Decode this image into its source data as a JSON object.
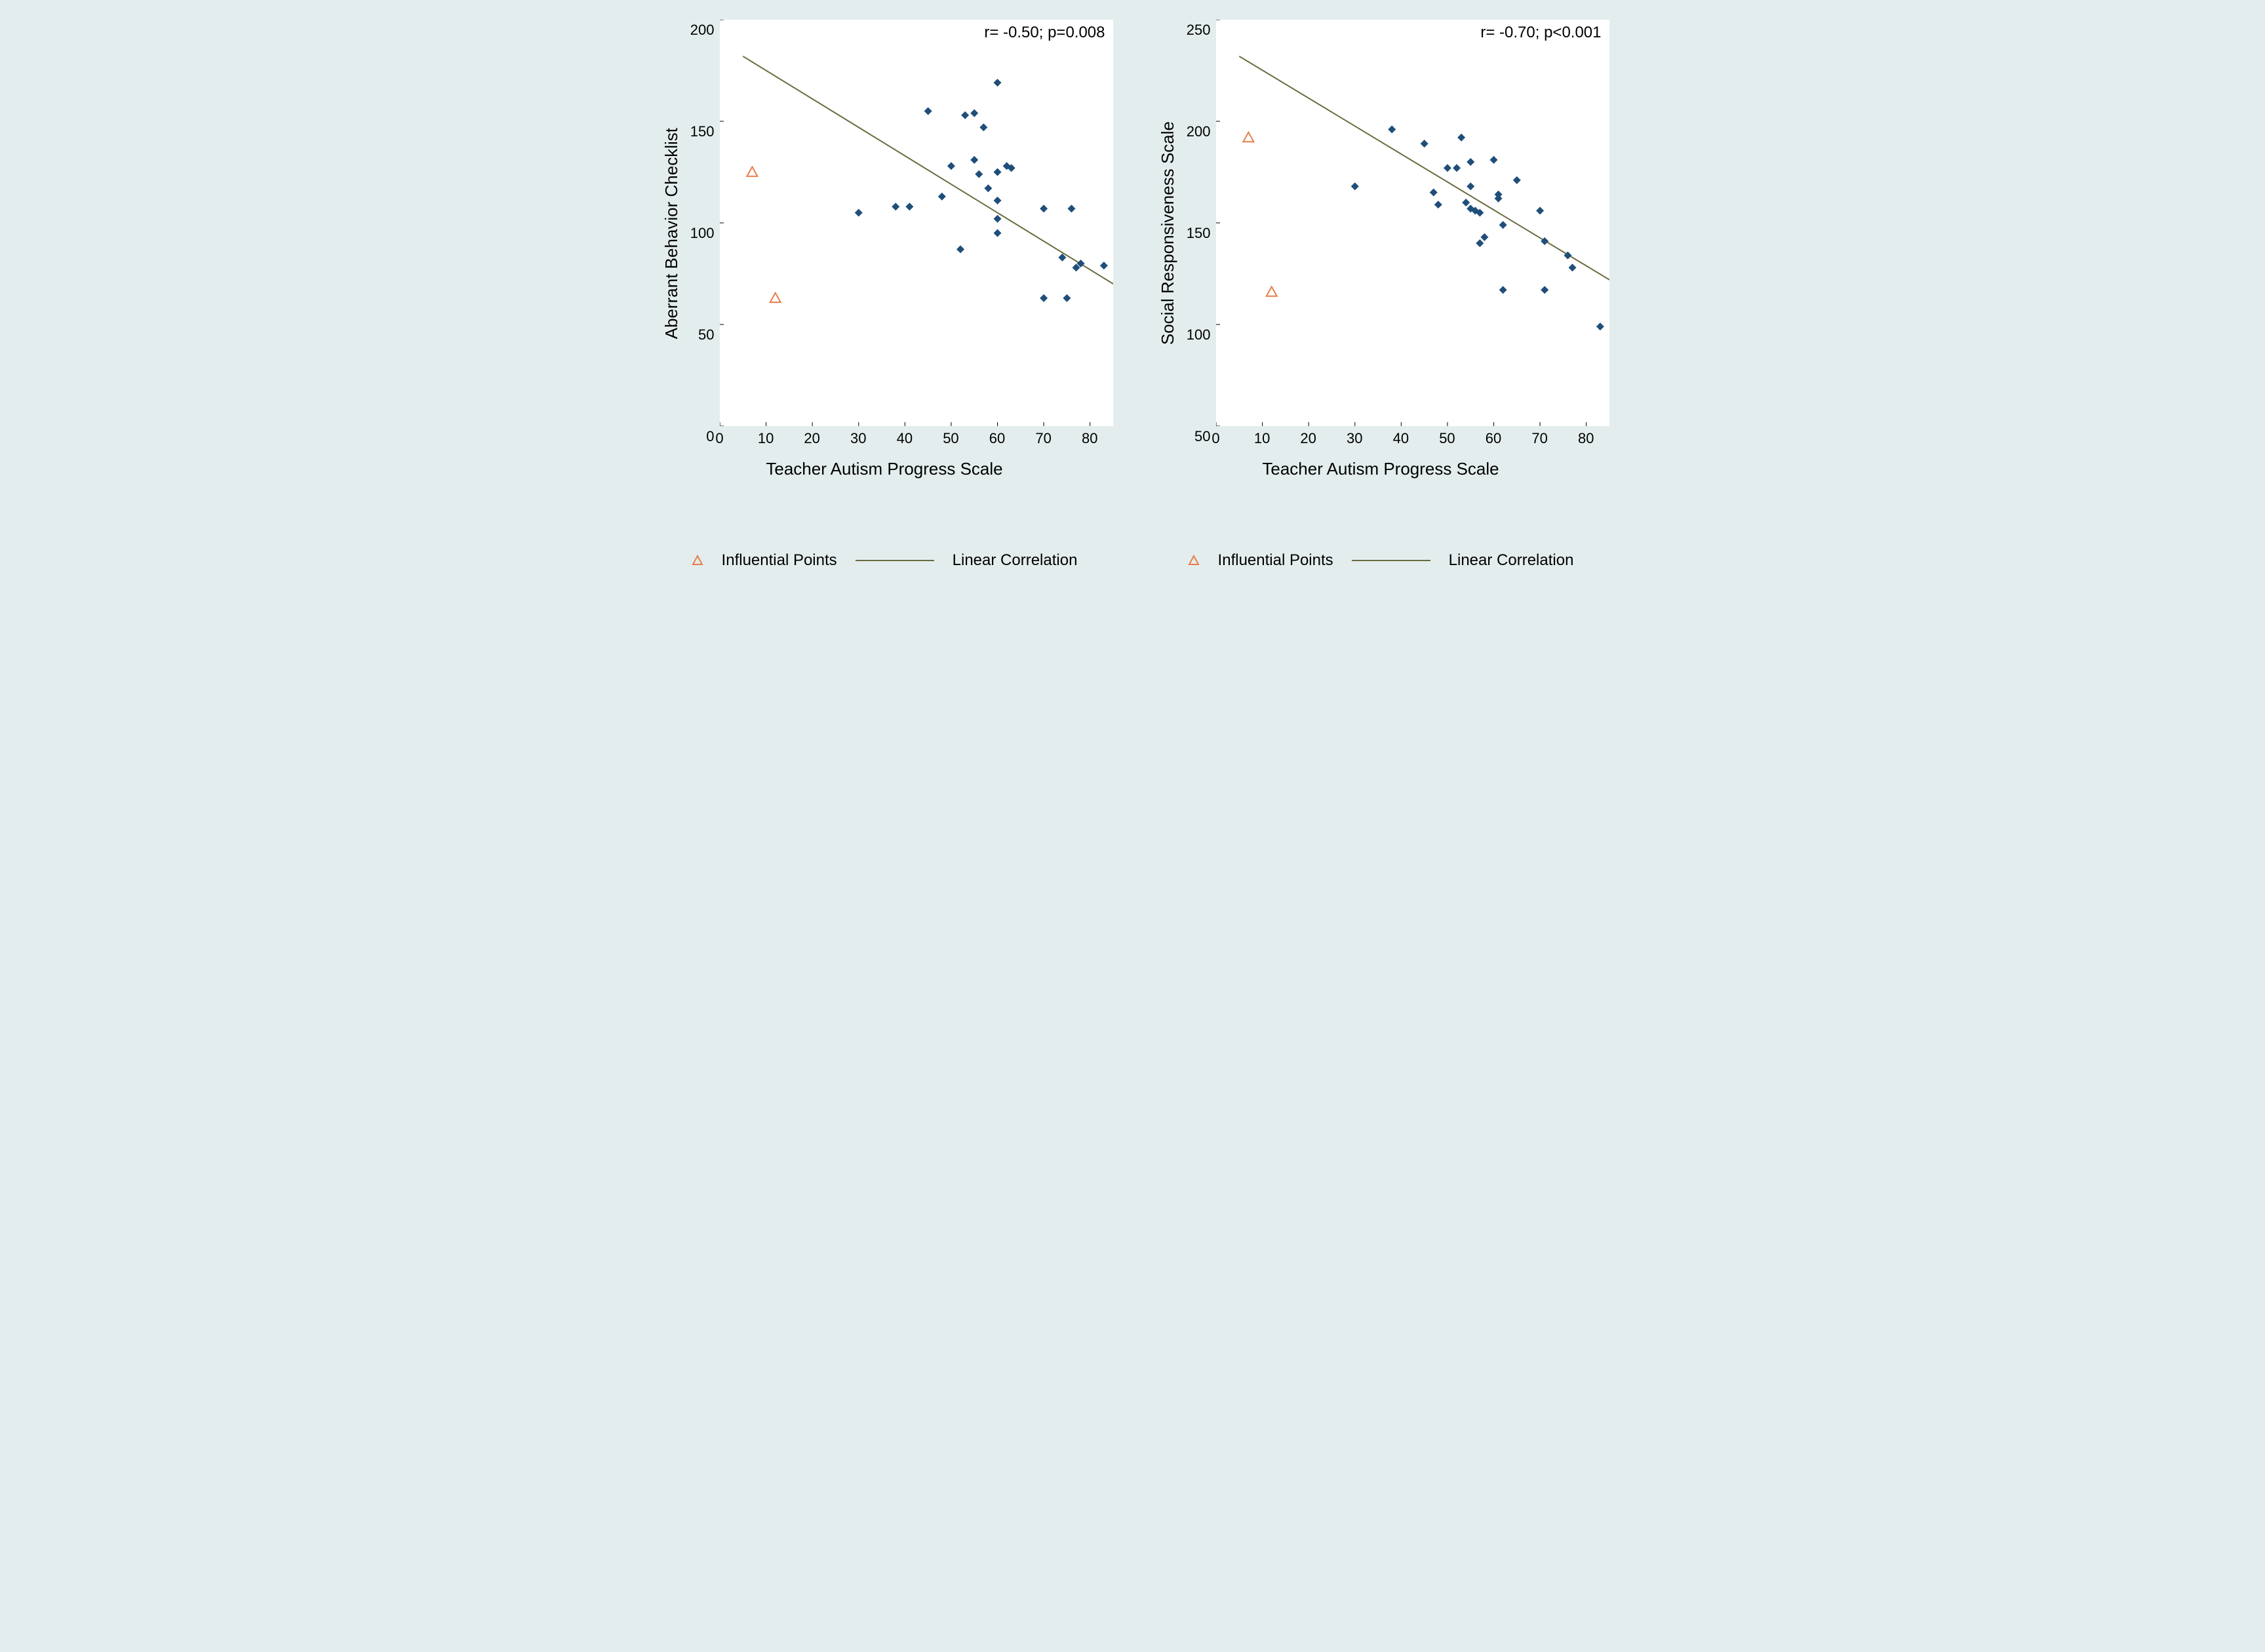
{
  "figure": {
    "background_color": "#e4edee",
    "plot_background": "#ffffff",
    "font_family": "Arial",
    "panels": [
      {
        "id": "left",
        "ylabel": "Aberrant Behavior Checklist",
        "xlabel": "Teacher Autism Progress Scale",
        "annotation": "r= -0.50; p=0.008",
        "type": "scatter",
        "xlim": [
          0,
          85
        ],
        "ylim": [
          0,
          200
        ],
        "xticks": [
          0,
          10,
          20,
          30,
          40,
          50,
          60,
          70,
          80
        ],
        "yticks": [
          0,
          50,
          100,
          150,
          200
        ],
        "tick_fontsize": 22,
        "label_fontsize": 26,
        "annotation_fontsize": 24,
        "marker_color": "#1f4e79",
        "marker_size": 6,
        "marker_shape": "diamond",
        "outlier_color": "#e67e4a",
        "outlier_shape": "triangle-open",
        "outlier_size": 8,
        "line_color": "#6b6b3f",
        "line_width": 2,
        "regression_line": {
          "x1": 5,
          "y1": 182,
          "x2": 85,
          "y2": 70
        },
        "data_points": [
          {
            "x": 30,
            "y": 105
          },
          {
            "x": 38,
            "y": 108
          },
          {
            "x": 41,
            "y": 108
          },
          {
            "x": 45,
            "y": 155
          },
          {
            "x": 48,
            "y": 113
          },
          {
            "x": 50,
            "y": 128
          },
          {
            "x": 52,
            "y": 87
          },
          {
            "x": 53,
            "y": 153
          },
          {
            "x": 55,
            "y": 154
          },
          {
            "x": 55,
            "y": 131
          },
          {
            "x": 56,
            "y": 124
          },
          {
            "x": 57,
            "y": 147
          },
          {
            "x": 58,
            "y": 117
          },
          {
            "x": 60,
            "y": 169
          },
          {
            "x": 60,
            "y": 125
          },
          {
            "x": 60,
            "y": 111
          },
          {
            "x": 60,
            "y": 102
          },
          {
            "x": 60,
            "y": 95
          },
          {
            "x": 62,
            "y": 128
          },
          {
            "x": 63,
            "y": 127
          },
          {
            "x": 70,
            "y": 63
          },
          {
            "x": 70,
            "y": 107
          },
          {
            "x": 74,
            "y": 83
          },
          {
            "x": 75,
            "y": 63
          },
          {
            "x": 76,
            "y": 107
          },
          {
            "x": 77,
            "y": 78
          },
          {
            "x": 78,
            "y": 80
          },
          {
            "x": 83,
            "y": 79
          }
        ],
        "influential_points": [
          {
            "x": 7,
            "y": 125
          },
          {
            "x": 12,
            "y": 63
          }
        ]
      },
      {
        "id": "right",
        "ylabel": "Social Responsiveness Scale",
        "xlabel": "Teacher Autism Progress Scale",
        "annotation": "r= -0.70; p<0.001",
        "type": "scatter",
        "xlim": [
          0,
          85
        ],
        "ylim": [
          50,
          250
        ],
        "xticks": [
          0,
          10,
          20,
          30,
          40,
          50,
          60,
          70,
          80
        ],
        "yticks": [
          50,
          100,
          150,
          200,
          250
        ],
        "tick_fontsize": 22,
        "label_fontsize": 26,
        "annotation_fontsize": 24,
        "marker_color": "#1f4e79",
        "marker_size": 6,
        "marker_shape": "diamond",
        "outlier_color": "#e67e4a",
        "outlier_shape": "triangle-open",
        "outlier_size": 8,
        "line_color": "#6b6b3f",
        "line_width": 2,
        "regression_line": {
          "x1": 5,
          "y1": 232,
          "x2": 85,
          "y2": 122
        },
        "data_points": [
          {
            "x": 30,
            "y": 168
          },
          {
            "x": 38,
            "y": 196
          },
          {
            "x": 45,
            "y": 189
          },
          {
            "x": 47,
            "y": 165
          },
          {
            "x": 48,
            "y": 159
          },
          {
            "x": 50,
            "y": 177
          },
          {
            "x": 52,
            "y": 177
          },
          {
            "x": 53,
            "y": 192
          },
          {
            "x": 54,
            "y": 160
          },
          {
            "x": 55,
            "y": 180
          },
          {
            "x": 55,
            "y": 168
          },
          {
            "x": 55,
            "y": 157
          },
          {
            "x": 56,
            "y": 156
          },
          {
            "x": 57,
            "y": 155
          },
          {
            "x": 57,
            "y": 140
          },
          {
            "x": 58,
            "y": 143
          },
          {
            "x": 60,
            "y": 181
          },
          {
            "x": 61,
            "y": 164
          },
          {
            "x": 61,
            "y": 162
          },
          {
            "x": 62,
            "y": 149
          },
          {
            "x": 62,
            "y": 117
          },
          {
            "x": 65,
            "y": 171
          },
          {
            "x": 70,
            "y": 156
          },
          {
            "x": 71,
            "y": 141
          },
          {
            "x": 71,
            "y": 117
          },
          {
            "x": 76,
            "y": 134
          },
          {
            "x": 77,
            "y": 128
          },
          {
            "x": 83,
            "y": 99
          }
        ],
        "influential_points": [
          {
            "x": 7,
            "y": 192
          },
          {
            "x": 12,
            "y": 116
          }
        ]
      }
    ],
    "legend": {
      "items": [
        {
          "symbol": "triangle-open",
          "color": "#e67e4a",
          "label": "Influential Points"
        },
        {
          "symbol": "line",
          "color": "#6b6b3f",
          "label": "Linear Correlation"
        }
      ],
      "fontsize": 24
    }
  }
}
